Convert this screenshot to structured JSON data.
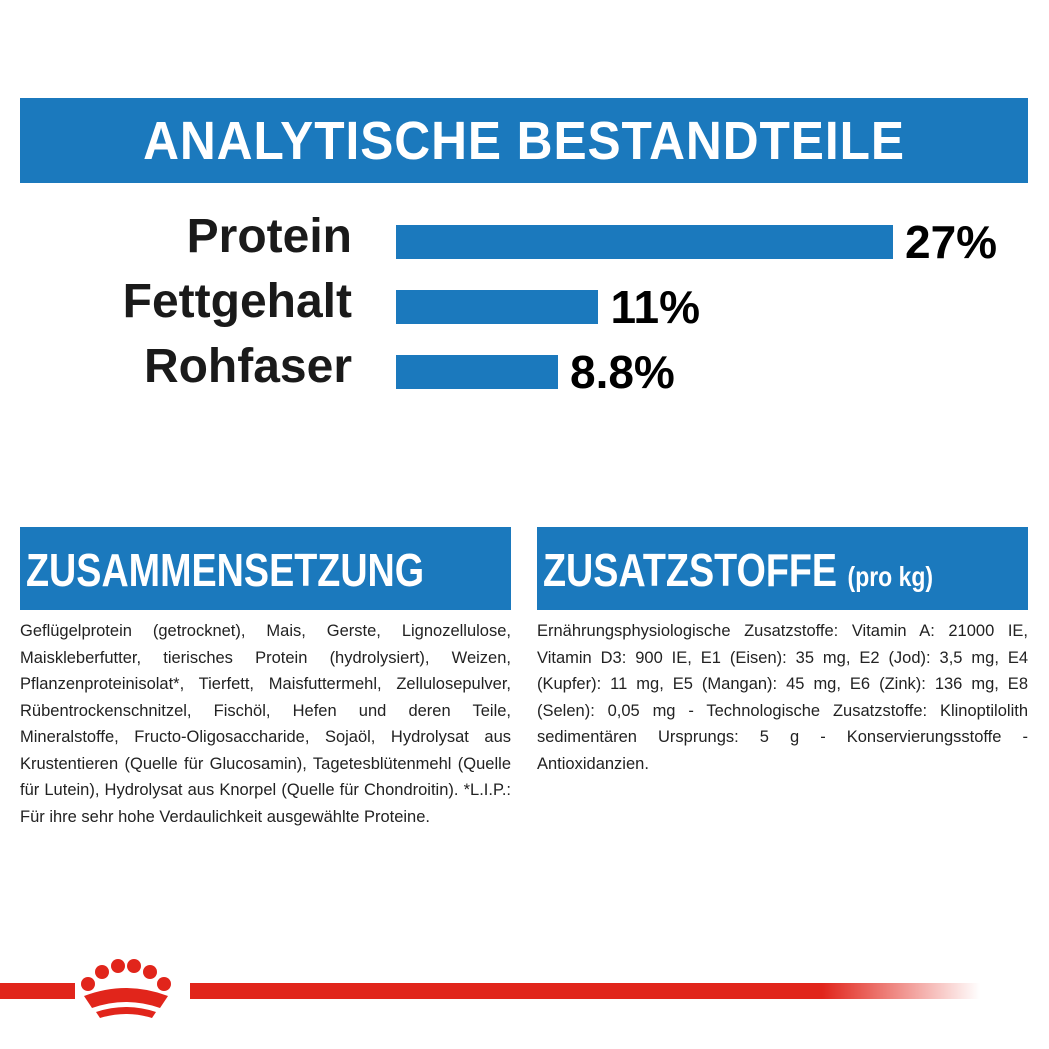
{
  "header": {
    "title": "ANALYTISCHE BESTANDTEILE"
  },
  "chart_data": {
    "type": "bar",
    "orientation": "horizontal",
    "color": "#1b79bd",
    "categories": [
      "Protein",
      "Fettgehalt",
      "Rohfaser"
    ],
    "values": [
      27,
      11,
      8.8
    ],
    "value_labels": [
      "27%",
      "11%",
      "8.8%"
    ]
  },
  "composition": {
    "title": "ZUSAMMENSETZUNG",
    "text": "Geflügelprotein (getrocknet), Mais, Gerste, Lignozellulose, Maiskleberfutter, tierisches Protein (hydrolysiert), Weizen, Pflanzenproteinisolat*, Tierfett, Maisfuttermehl, Zellulosepulver, Rübentrockenschnitzel, Fischöl, Hefen und deren Teile, Mineralstoffe, Fructo-Oligosaccharide, Sojaöl, Hydrolysat aus Krustentieren (Quelle für Glucosamin), Tagetesblütenmehl (Quelle für Lutein), Hydrolysat aus Knorpel (Quelle für Chondroitin). *L.I.P.: Für ihre sehr hohe Verdaulichkeit ausgewählte Proteine."
  },
  "additives": {
    "title": "ZUSATZSTOFFE",
    "title_note": "(pro kg)",
    "text": "Ernährungsphysiologische Zusatzstoffe: Vitamin A: 21000 IE, Vitamin D3: 900 IE, E1 (Eisen): 35 mg, E2 (Jod): 3,5 mg, E4 (Kupfer): 11 mg, E5 (Mangan): 45 mg, E6 (Zink): 136 mg, E8 (Selen): 0,05 mg - Technologische Zusatzstoffe: Klinoptilolith sedimentären Ursprungs: 5 g - Konservierungsstoffe - Antioxidanzien."
  }
}
